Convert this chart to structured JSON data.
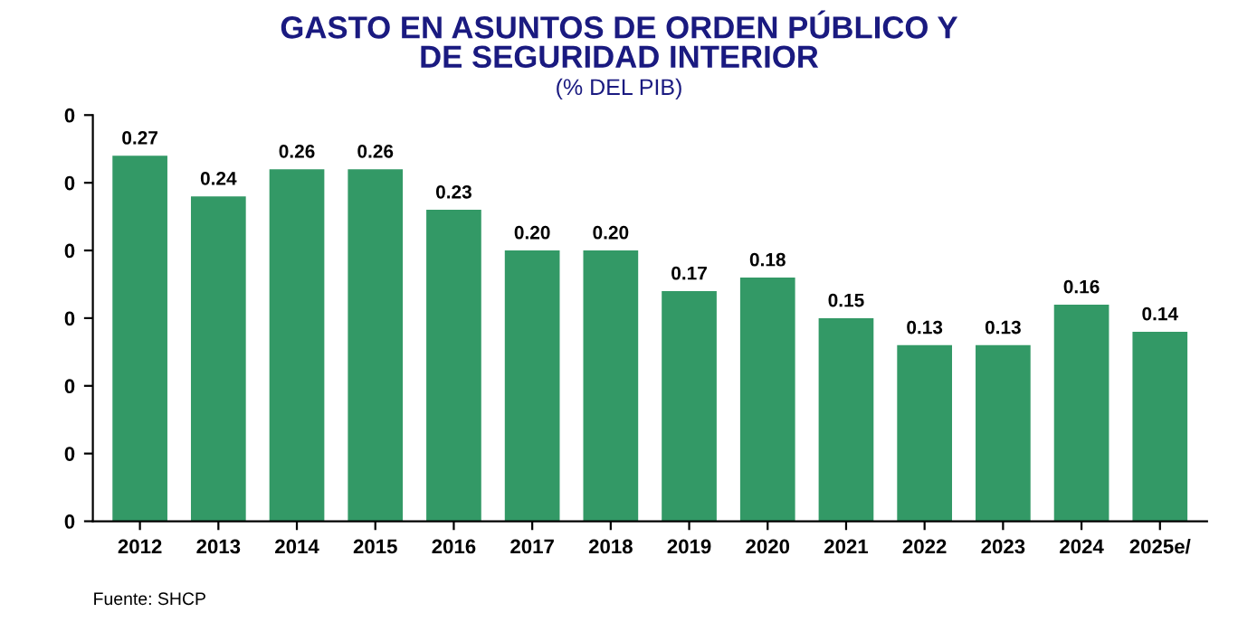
{
  "chart_data": {
    "type": "bar",
    "title": "GASTO EN ASUNTOS DE ORDEN PÚBLICO Y\nDE SEGURIDAD INTERIOR",
    "subtitle": "(% DEL PIB)",
    "categories": [
      "2012",
      "2013",
      "2014",
      "2015",
      "2016",
      "2017",
      "2018",
      "2019",
      "2020",
      "2021",
      "2022",
      "2023",
      "2024",
      "2025e/"
    ],
    "values": [
      0.27,
      0.24,
      0.26,
      0.26,
      0.23,
      0.2,
      0.2,
      0.17,
      0.18,
      0.15,
      0.13,
      0.13,
      0.16,
      0.14
    ],
    "value_labels": [
      "0.27",
      "0.24",
      "0.26",
      "0.26",
      "0.23",
      "0.20",
      "0.20",
      "0.17",
      "0.18",
      "0.15",
      "0.13",
      "0.13",
      "0.16",
      "0.14"
    ],
    "color": "#339966",
    "grid": false,
    "legend": false,
    "ylim": [
      0,
      0.3
    ],
    "yticks": [
      {
        "value": 0,
        "label": "0"
      },
      {
        "value": 0.05,
        "label": "0"
      },
      {
        "value": 0.1,
        "label": "0"
      },
      {
        "value": 0.15,
        "label": "0"
      },
      {
        "value": 0.2,
        "label": "0"
      },
      {
        "value": 0.25,
        "label": "0"
      },
      {
        "value": 0.3,
        "label": "0"
      }
    ],
    "annotations": [
      "Fuente: SHCP"
    ]
  }
}
